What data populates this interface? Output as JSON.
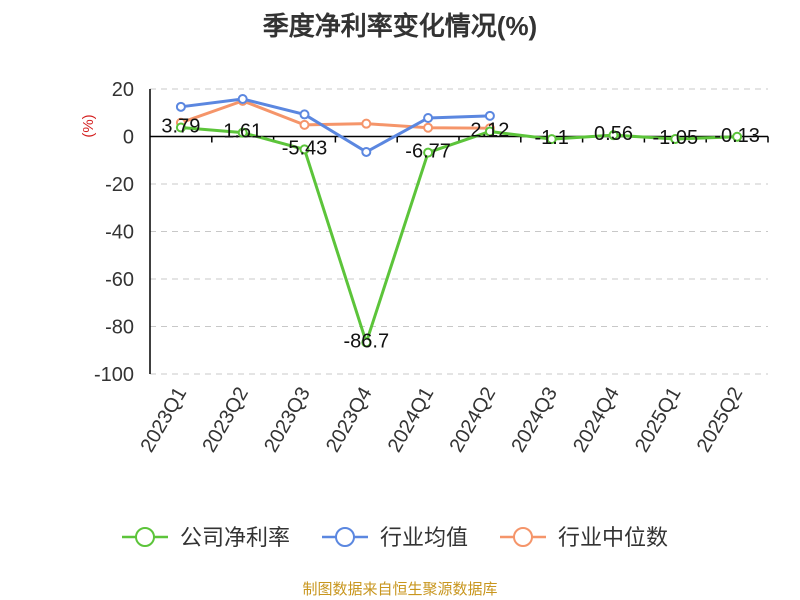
{
  "title": "季度净利率变化情况(%)",
  "footer": "制图数据来自恒生聚源数据库",
  "colors": {
    "company": "#5cc43a",
    "industry_avg": "#5b87e0",
    "industry_median": "#f5956a",
    "unit_label": "#d42020",
    "axis": "#000000",
    "grid": "#c8c8c8"
  },
  "chart_data": {
    "type": "line",
    "title": "季度净利率变化情况(%)",
    "ylabel": "(%)",
    "ylim": [
      -100,
      20
    ],
    "yticks": [
      20,
      0,
      -20,
      -40,
      -60,
      -80,
      -100
    ],
    "grid": true,
    "legend_position": "bottom",
    "categories": [
      "2023Q1",
      "2023Q2",
      "2023Q3",
      "2023Q4",
      "2024Q1",
      "2024Q2",
      "2024Q3",
      "2024Q4",
      "2025Q1",
      "2025Q2"
    ],
    "series": [
      {
        "name": "公司净利率",
        "color": "#5cc43a",
        "values": [
          3.79,
          1.61,
          -5.43,
          -86.7,
          -6.77,
          2.12,
          -1.1,
          0.56,
          -1.05,
          -0.13
        ],
        "labels": [
          "3.79",
          "1.61",
          "-5.43",
          "-86.7",
          "-6.77",
          "2.12",
          "-1.1",
          "0.56",
          "-1.05",
          "-0.13"
        ]
      },
      {
        "name": "行业均值",
        "color": "#5b87e0",
        "values": [
          12.5,
          15.8,
          9.3,
          -6.5,
          7.8,
          8.7,
          null,
          null,
          null,
          null
        ]
      },
      {
        "name": "行业中位数",
        "color": "#f5956a",
        "values": [
          5.8,
          15.0,
          4.9,
          5.4,
          3.7,
          3.5,
          null,
          null,
          null,
          null
        ]
      }
    ]
  }
}
